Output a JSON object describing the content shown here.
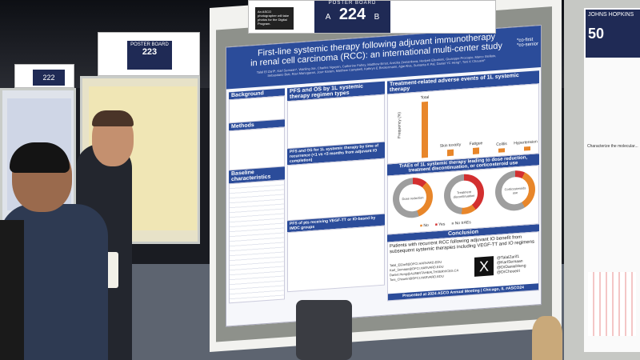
{
  "signs": {
    "board_label": "POSTER BOARD",
    "main_a": "A",
    "main_number": "224",
    "main_b": "B",
    "left_number": "223",
    "far_left_number": "222",
    "photo_note": "An ASCO photographer will take photos for the Digital Program."
  },
  "poster": {
    "title_line1": "First-line systemic therapy following adjuvant immunotherapy",
    "title_line2": "in renal cell carcinoma (RCC): an international multi-center study",
    "authors": "Talal El Zarif*, Karl Semaan*, Wanling Xie, Charles Nguyen, Catherine Fahey, Matthew Ernst, Anezka Zemankova, Hedyeh Ebrahimi, Giuseppe Procopio, Marco Stellato, Sebastiano Buti, Ravi Manogaran, Jose Karam, Matthew Campbell, Kathryn E Beckermann, Ajjai Alva, Sumanta K Pal, Daniel YC Heng*, Toni K Choueiri*",
    "co_first": "*co-first",
    "co_senior": "*co-senior",
    "sections": {
      "background": "Background",
      "methods": "Methods",
      "baseline": "Baseline characteristics",
      "pfs_os": "PFS and OS by 1L systemic therapy regimen types",
      "pfs_time": "PFS and OS for 1L systemic therapy by time of recurrence (<1 vs <3 months from adjuvant IO completion)",
      "pfs_imdc": "PFS of pts receiving VEGF-TT or IO-based by IMDC groups",
      "trae": "Treatment-related adverse events of 1L systemic therapy",
      "trae_dose": "TrAEs of 1L systemic therapy leading to dose reduction, treatment discontinuation, or corticosteroid use",
      "conclusion": "Conclusion"
    },
    "bar_labels": [
      "Total",
      "Skin toxicity",
      "Fatigue",
      "Colitis",
      "Hypertension"
    ],
    "bar_axis": "Frequency (%)",
    "donuts": [
      {
        "label": "Dose reduction"
      },
      {
        "label": "Treatment discontinuation"
      },
      {
        "label": "Corticosteroids use"
      }
    ],
    "legend": [
      "No",
      "Yes",
      "No trAEs"
    ],
    "colors": {
      "no": "#e8862a",
      "yes": "#d32f2f",
      "no_trae": "#9e9e9e",
      "banner": "#2b4c9a"
    },
    "conclusion_text": "Patients with recurrent RCC following adjuvant IO benefit from subsequent systemic therapies including VEGF-TT and IO regimens",
    "emails": [
      "Talal_ElZarif@DFCI.HARVARD.EDU",
      "Karl_Semaan@DFCI.HARVARD.EDU",
      "Daniel.Heng@ALBERTAHEALTHSERVICES.CA",
      "Toni_Choueiri@DFCI.HARVARD.EDU"
    ],
    "handles": [
      "@TalalZarif1",
      "@KarlSemaan",
      "@DrDanielHeng",
      "@DrChoueiri"
    ],
    "footer": "Presented at 2024 ASCO Annual Meeting | Chicago, IL #ASCO24"
  },
  "right_poster": {
    "logo": "JOHNS HOPKINS",
    "badge": "50",
    "text": "Characterize the molecular..."
  }
}
